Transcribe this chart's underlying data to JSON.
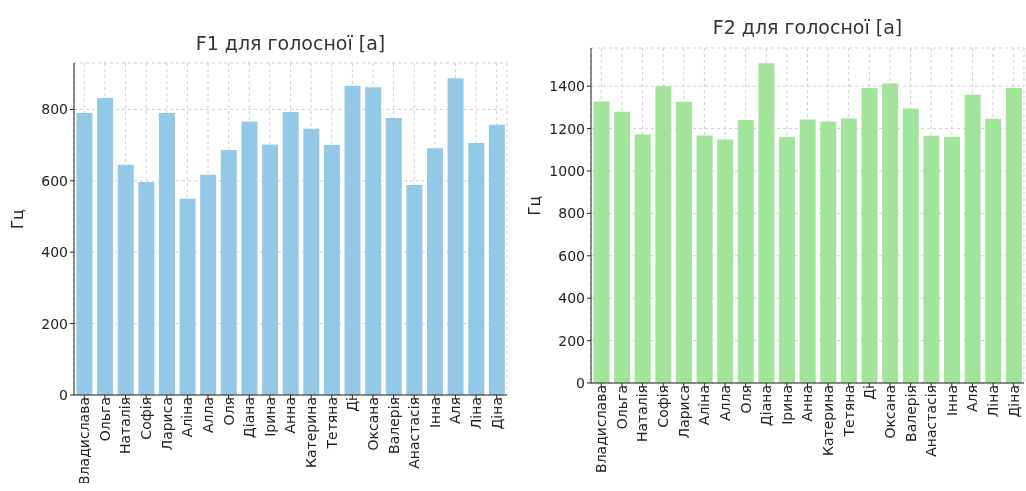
{
  "chart_data": [
    {
      "type": "bar",
      "title": "F1 для голосної [а]",
      "ylabel": "Гц",
      "categories": [
        "Владислава",
        "Ольга",
        "Наталія",
        "Софія",
        "Лариса",
        "Аліна",
        "Алла",
        "Оля",
        "Діана",
        "Ірина",
        "Анна",
        "Катерина",
        "Тетяна",
        "Ді",
        "Оксана",
        "Валерія",
        "Анастасія",
        "Інна",
        "Аля",
        "Ліна",
        "Діна"
      ],
      "values": [
        790,
        832,
        645,
        597,
        790,
        550,
        617,
        686,
        766,
        702,
        793,
        746,
        700,
        866,
        862,
        776,
        588,
        691,
        887,
        706,
        757
      ],
      "color": "#93c9e6",
      "ylim": [
        0,
        930
      ],
      "yticks": [
        0,
        200,
        400,
        600,
        800
      ],
      "grid": true
    },
    {
      "type": "bar",
      "title": "F2 для голосної [а]",
      "ylabel": "Гц",
      "categories": [
        "Владислава",
        "Ольга",
        "Наталія",
        "Софія",
        "Лариса",
        "Аліна",
        "Алла",
        "Оля",
        "Діана",
        "Ірина",
        "Анна",
        "Катерина",
        "Тетяна",
        "Ді",
        "Оксана",
        "Валерія",
        "Анастасія",
        "Інна",
        "Аля",
        "Ліна",
        "Діна"
      ],
      "values": [
        1328,
        1279,
        1172,
        1400,
        1326,
        1167,
        1148,
        1241,
        1508,
        1161,
        1243,
        1233,
        1248,
        1391,
        1413,
        1295,
        1166,
        1161,
        1360,
        1246,
        1391
      ],
      "color": "#a2e59a",
      "ylim": [
        0,
        1580
      ],
      "yticks": [
        0,
        200,
        400,
        600,
        800,
        1000,
        1200,
        1400
      ],
      "grid": true
    }
  ]
}
